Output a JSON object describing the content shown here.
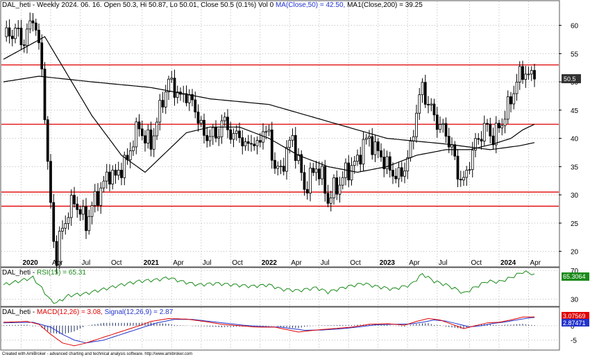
{
  "header": {
    "symbol": "DAL_heti - Weekly 2024. 06. 16.",
    "ohlc": "Open 50.3, Hi 50.87, Lo 50.01, Close 50.5 (0.1%) Vol 0",
    "ma50_label": "MA(Close,50) = 42.50,",
    "ma200_label": "MA1(Close,200) = 39.25"
  },
  "rsi_header": {
    "prefix": "DAL_heti -",
    "label": "RSI(15) = 65.31"
  },
  "macd_header": {
    "prefix": "DAL_heti -",
    "macd_label": "MACD(12,26) = 3.08,",
    "signal_label": "Signal(12,26,9) = 2.87"
  },
  "footer": "Created with AmiBroker - advanced charting and technical analysis software. http://www.amibroker.com",
  "colors": {
    "price": "#000000",
    "ma": "#000000",
    "hline": "#e00000",
    "rsi": "#1a8a1a",
    "macd": "#e00000",
    "signal": "#2233cc",
    "grid": "#b8b8b8",
    "up": "#ffffff"
  },
  "chart_data": [
    {
      "type": "candlestick",
      "title": "DAL_heti - Weekly",
      "y_ticks": [
        20,
        25,
        30,
        35,
        40,
        45,
        50,
        55,
        60
      ],
      "ylim": [
        17.5,
        64
      ],
      "x_tick_labels": [
        "2020",
        "Apr",
        "Jul",
        "Oct",
        "2021",
        "Apr",
        "Jul",
        "Oct",
        "2022",
        "Apr",
        "Jul",
        "Oct",
        "2023",
        "Apr",
        "Jul",
        "Oct",
        "2024",
        "Apr"
      ],
      "x_tick_bold": [
        "2020",
        "2021",
        "2022",
        "2023",
        "2024"
      ],
      "last_value_tag": "50.5",
      "last_close": 50.5,
      "horizontal_lines": [
        53.0,
        42.5,
        30.5,
        28.0
      ],
      "close_anchors": [
        [
          0,
          58
        ],
        [
          4,
          59
        ],
        [
          7,
          57
        ],
        [
          9,
          60
        ],
        [
          10,
          62
        ],
        [
          12,
          56
        ],
        [
          13,
          52
        ],
        [
          14,
          45
        ],
        [
          15,
          35
        ],
        [
          16,
          28
        ],
        [
          17,
          22
        ],
        [
          18,
          19
        ],
        [
          19,
          22
        ],
        [
          20,
          24
        ],
        [
          22,
          27
        ],
        [
          24,
          29
        ],
        [
          26,
          27
        ],
        [
          28,
          25
        ],
        [
          30,
          28
        ],
        [
          32,
          30
        ],
        [
          34,
          32
        ],
        [
          36,
          34
        ],
        [
          38,
          33
        ],
        [
          40,
          35
        ],
        [
          42,
          36
        ],
        [
          44,
          40
        ],
        [
          46,
          42
        ],
        [
          48,
          40
        ],
        [
          50,
          39
        ],
        [
          52,
          43
        ],
        [
          54,
          47
        ],
        [
          56,
          50
        ],
        [
          58,
          49
        ],
        [
          60,
          47
        ],
        [
          62,
          48
        ],
        [
          64,
          46
        ],
        [
          66,
          44
        ],
        [
          68,
          40
        ],
        [
          70,
          41
        ],
        [
          72,
          40
        ],
        [
          74,
          43
        ],
        [
          76,
          42
        ],
        [
          78,
          40
        ],
        [
          80,
          41
        ],
        [
          82,
          38
        ],
        [
          84,
          40
        ],
        [
          86,
          38
        ],
        [
          88,
          42
        ],
        [
          90,
          40
        ],
        [
          92,
          35
        ],
        [
          94,
          34
        ],
        [
          96,
          38
        ],
        [
          98,
          40
        ],
        [
          100,
          36
        ],
        [
          102,
          31
        ],
        [
          104,
          33
        ],
        [
          106,
          35
        ],
        [
          108,
          33
        ],
        [
          110,
          29
        ],
        [
          112,
          31
        ],
        [
          114,
          32
        ],
        [
          116,
          34
        ],
        [
          118,
          35
        ],
        [
          120,
          36
        ],
        [
          122,
          39
        ],
        [
          124,
          40
        ],
        [
          126,
          38
        ],
        [
          128,
          37
        ],
        [
          130,
          35
        ],
        [
          132,
          34
        ],
        [
          134,
          33
        ],
        [
          136,
          35
        ],
        [
          138,
          38
        ],
        [
          140,
          45
        ],
        [
          142,
          49
        ],
        [
          144,
          46
        ],
        [
          146,
          44
        ],
        [
          148,
          42
        ],
        [
          150,
          41
        ],
        [
          152,
          38
        ],
        [
          154,
          34
        ],
        [
          156,
          32
        ],
        [
          158,
          36
        ],
        [
          160,
          39
        ],
        [
          162,
          41
        ],
        [
          164,
          42
        ],
        [
          166,
          40
        ],
        [
          168,
          42
        ],
        [
          170,
          44
        ],
        [
          172,
          47
        ],
        [
          174,
          50
        ],
        [
          176,
          52
        ],
        [
          178,
          51
        ],
        [
          180,
          50.5
        ]
      ],
      "ma50_anchors": [
        [
          0,
          54
        ],
        [
          14,
          58
        ],
        [
          30,
          44
        ],
        [
          40,
          37
        ],
        [
          48,
          34
        ],
        [
          56,
          38
        ],
        [
          62,
          41
        ],
        [
          70,
          42
        ],
        [
          80,
          42
        ],
        [
          90,
          40
        ],
        [
          100,
          37
        ],
        [
          110,
          35
        ],
        [
          120,
          34
        ],
        [
          130,
          35
        ],
        [
          140,
          37
        ],
        [
          150,
          38
        ],
        [
          158,
          38
        ],
        [
          166,
          39
        ],
        [
          172,
          40
        ],
        [
          176,
          41.5
        ],
        [
          180,
          42.5
        ]
      ],
      "ma200_anchors": [
        [
          0,
          50
        ],
        [
          12,
          51
        ],
        [
          30,
          50
        ],
        [
          50,
          49
        ],
        [
          70,
          47
        ],
        [
          90,
          46
        ],
        [
          110,
          43
        ],
        [
          130,
          40
        ],
        [
          150,
          39
        ],
        [
          165,
          38
        ],
        [
          175,
          38.7
        ],
        [
          180,
          39.25
        ]
      ]
    },
    {
      "type": "line",
      "title": "RSI(15)",
      "y_ticks": [
        30,
        70
      ],
      "ylim": [
        22,
        72
      ],
      "last_value_tag": "65.3064",
      "last_value": 65.31,
      "rsi_anchors": [
        [
          0,
          50
        ],
        [
          5,
          55
        ],
        [
          10,
          60
        ],
        [
          13,
          45
        ],
        [
          16,
          28
        ],
        [
          18,
          25
        ],
        [
          22,
          35
        ],
        [
          28,
          38
        ],
        [
          34,
          44
        ],
        [
          40,
          50
        ],
        [
          46,
          55
        ],
        [
          52,
          57
        ],
        [
          56,
          60
        ],
        [
          60,
          55
        ],
        [
          66,
          50
        ],
        [
          72,
          52
        ],
        [
          78,
          50
        ],
        [
          84,
          48
        ],
        [
          90,
          50
        ],
        [
          94,
          44
        ],
        [
          100,
          42
        ],
        [
          106,
          46
        ],
        [
          110,
          40
        ],
        [
          116,
          47
        ],
        [
          122,
          52
        ],
        [
          126,
          48
        ],
        [
          132,
          44
        ],
        [
          138,
          50
        ],
        [
          142,
          65
        ],
        [
          146,
          55
        ],
        [
          150,
          50
        ],
        [
          154,
          43
        ],
        [
          156,
          38
        ],
        [
          160,
          47
        ],
        [
          164,
          55
        ],
        [
          168,
          54
        ],
        [
          172,
          60
        ],
        [
          176,
          68
        ],
        [
          180,
          65.3
        ]
      ]
    },
    {
      "type": "line",
      "title": "MACD(12,26)",
      "y_ticks": [
        0,
        -5
      ],
      "ylim": [
        -8,
        6
      ],
      "last_value_tags": [
        "3.07569",
        "2.87471"
      ],
      "macd_last": 3.08,
      "signal_last": 2.87,
      "macd_anchors": [
        [
          0,
          1.2
        ],
        [
          8,
          1.5
        ],
        [
          12,
          0.5
        ],
        [
          16,
          -3
        ],
        [
          20,
          -6
        ],
        [
          24,
          -7
        ],
        [
          28,
          -6
        ],
        [
          34,
          -4
        ],
        [
          40,
          -2
        ],
        [
          46,
          0
        ],
        [
          50,
          1.5
        ],
        [
          56,
          2.5
        ],
        [
          62,
          2.3
        ],
        [
          68,
          1.5
        ],
        [
          74,
          0.5
        ],
        [
          80,
          0
        ],
        [
          86,
          -0.5
        ],
        [
          92,
          -0.5
        ],
        [
          100,
          -2.2
        ],
        [
          106,
          -1.5
        ],
        [
          112,
          -1.0
        ],
        [
          118,
          -0.5
        ],
        [
          124,
          0.5
        ],
        [
          130,
          0.7
        ],
        [
          136,
          0.2
        ],
        [
          140,
          1.5
        ],
        [
          144,
          2.5
        ],
        [
          148,
          2.0
        ],
        [
          152,
          0.5
        ],
        [
          156,
          -1.0
        ],
        [
          160,
          0
        ],
        [
          164,
          1.0
        ],
        [
          168,
          1.2
        ],
        [
          172,
          2.0
        ],
        [
          176,
          3.0
        ],
        [
          180,
          3.08
        ]
      ],
      "signal_anchors": [
        [
          0,
          1.0
        ],
        [
          10,
          1.2
        ],
        [
          16,
          -0.5
        ],
        [
          20,
          -3
        ],
        [
          24,
          -5
        ],
        [
          28,
          -6
        ],
        [
          34,
          -5
        ],
        [
          40,
          -3
        ],
        [
          46,
          -1
        ],
        [
          52,
          1
        ],
        [
          58,
          2.2
        ],
        [
          64,
          2.2
        ],
        [
          70,
          1.5
        ],
        [
          76,
          0.8
        ],
        [
          82,
          0.1
        ],
        [
          88,
          -0.3
        ],
        [
          94,
          -0.5
        ],
        [
          102,
          -1.6
        ],
        [
          108,
          -1.5
        ],
        [
          114,
          -1.1
        ],
        [
          120,
          -0.5
        ],
        [
          126,
          0.3
        ],
        [
          132,
          0.5
        ],
        [
          138,
          0.6
        ],
        [
          142,
          1.2
        ],
        [
          146,
          2.0
        ],
        [
          150,
          1.6
        ],
        [
          154,
          0.6
        ],
        [
          158,
          -0.4
        ],
        [
          162,
          0
        ],
        [
          166,
          0.8
        ],
        [
          170,
          1.3
        ],
        [
          174,
          2.0
        ],
        [
          178,
          2.7
        ],
        [
          180,
          2.87
        ]
      ]
    }
  ]
}
